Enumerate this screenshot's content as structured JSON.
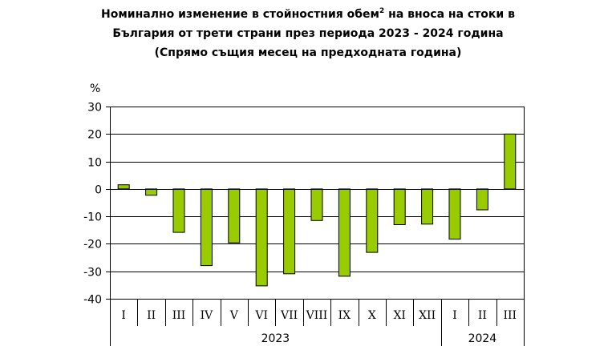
{
  "chart_data": {
    "type": "bar",
    "title_part1": "Номинално изменение в стойностния обем",
    "title_sup": "2",
    "title_part2": " на вноса на стоки в",
    "title_line2": "България от трети страни през периода 2023 - 2024 година",
    "subtitle": "(Спрямо същия месец на предходната година)",
    "ylabel": "%",
    "ylim": [
      -40,
      30
    ],
    "yticks": [
      30,
      20,
      10,
      0,
      -10,
      -20,
      -30,
      -40
    ],
    "ytick_labels": [
      "30",
      "20",
      "10",
      "0",
      "-10",
      "-20",
      "-30",
      "-40"
    ],
    "categories": [
      "I",
      "II",
      "III",
      "IV",
      "V",
      "VI",
      "VII",
      "VIII",
      "IX",
      "X",
      "XI",
      "XII",
      "I",
      "II",
      "III"
    ],
    "values": [
      1.5,
      -2.3,
      -15.8,
      -27.9,
      -19.6,
      -35.3,
      -30.9,
      -11.5,
      -31.8,
      -23.1,
      -13.0,
      -12.8,
      -18.3,
      -7.6,
      20.0
    ],
    "groups": [
      {
        "label": "2023",
        "count": 12
      },
      {
        "label": "2024",
        "count": 3
      }
    ],
    "grid": true,
    "colors": {
      "bar": "#99cc00",
      "bar_stroke": "#000000",
      "grid": "#000000",
      "axis": "#000000"
    }
  }
}
